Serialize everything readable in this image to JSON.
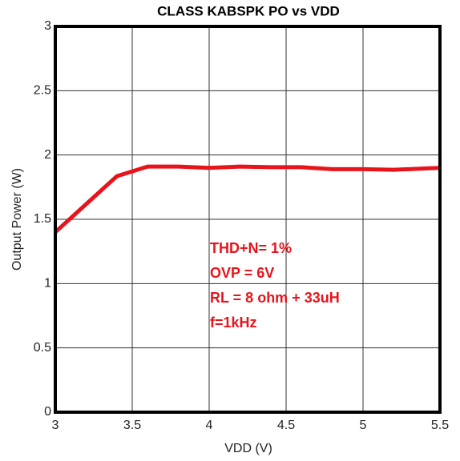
{
  "chart_data": {
    "type": "line",
    "title": "CLASS KABSPK PO vs VDD",
    "x_label": "VDD (V)",
    "y_label": "Output Power (W)",
    "x": [
      3,
      3.4,
      3.6,
      3.8,
      4.0,
      4.2,
      4.4,
      4.6,
      4.8,
      5.0,
      5.2,
      5.4,
      5.5
    ],
    "series": [
      {
        "name": "PO",
        "color": "#e8141c",
        "values": [
          1.4,
          1.835,
          1.91,
          1.91,
          1.9,
          1.91,
          1.905,
          1.905,
          1.89,
          1.89,
          1.885,
          1.895,
          1.9
        ]
      }
    ],
    "xlim": [
      3,
      5.5
    ],
    "xticks": [
      3,
      3.5,
      4,
      4.5,
      5,
      5.5
    ],
    "ylim": [
      0,
      3
    ],
    "yticks": [
      0,
      0.5,
      1,
      1.5,
      2,
      2.5,
      3
    ],
    "grid": true,
    "annotations": [
      "THD+N= 1%",
      "OVP = 6V",
      "RL = 8 ohm + 33uH",
      "f=1kHz"
    ]
  }
}
